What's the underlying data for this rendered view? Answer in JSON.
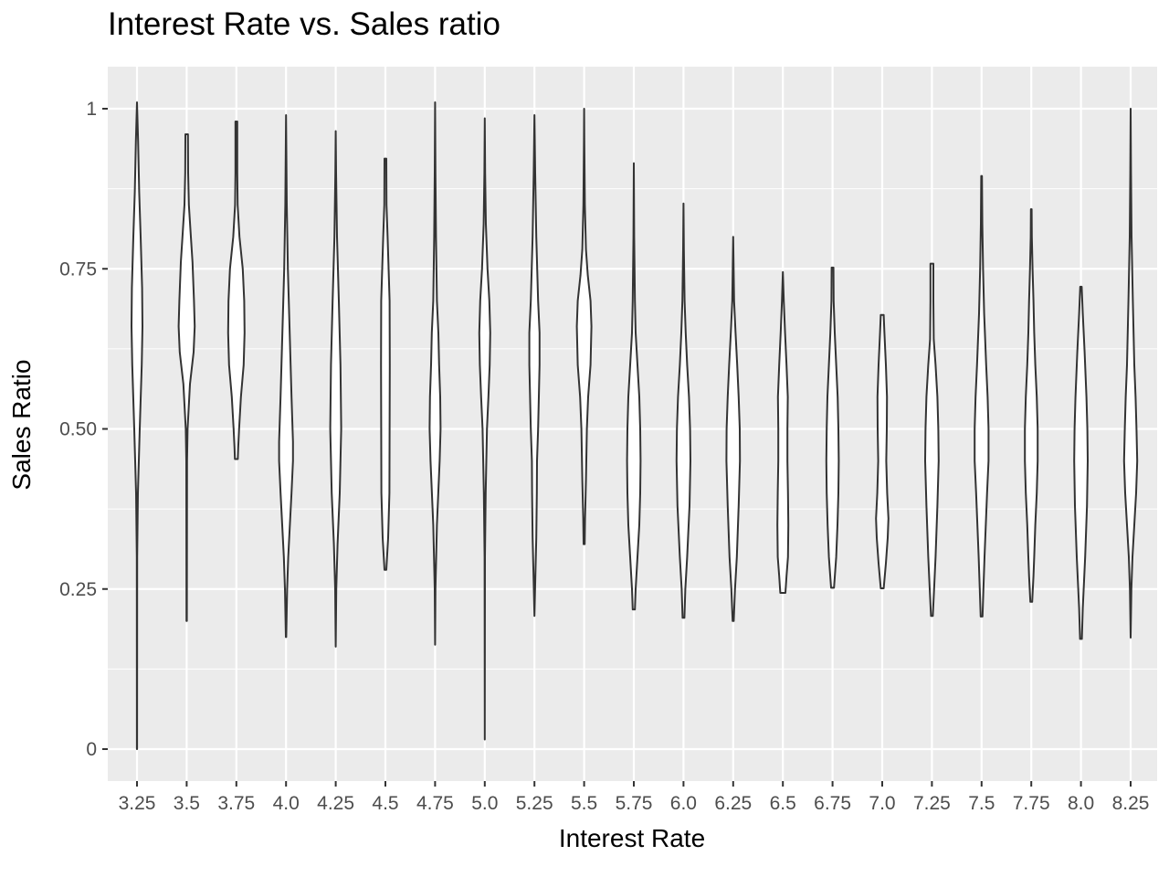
{
  "chart_data": {
    "type": "violin",
    "title": "Interest Rate vs. Sales ratio",
    "xlabel": "Interest Rate",
    "ylabel": "Sales Ratio",
    "categories": [
      "3.25",
      "3.5",
      "3.75",
      "4.0",
      "4.25",
      "4.5",
      "4.75",
      "5.0",
      "5.25",
      "5.5",
      "5.75",
      "6.0",
      "6.25",
      "6.5",
      "6.75",
      "7.0",
      "7.25",
      "7.5",
      "7.75",
      "8.0",
      "8.25"
    ],
    "ylim": [
      -0.05,
      1.065
    ],
    "yticks": [
      0,
      0.25,
      0.5,
      0.75,
      1
    ],
    "ytick_labels": [
      "0",
      "0.25",
      "0.50",
      "0.75",
      "1"
    ],
    "grid": true,
    "violins": [
      {
        "category": "3.25",
        "min": 0.0,
        "max": 1.01,
        "profile": [
          [
            0.0,
            0.005
          ],
          [
            0.3,
            0.01
          ],
          [
            0.4,
            0.05
          ],
          [
            0.5,
            0.15
          ],
          [
            0.6,
            0.26
          ],
          [
            0.66,
            0.3
          ],
          [
            0.72,
            0.28
          ],
          [
            0.8,
            0.2
          ],
          [
            0.87,
            0.12
          ],
          [
            0.95,
            0.06
          ],
          [
            1.01,
            0.0
          ]
        ]
      },
      {
        "category": "3.5",
        "min": 0.2,
        "max": 0.96,
        "profile": [
          [
            0.2,
            0.01
          ],
          [
            0.45,
            0.02
          ],
          [
            0.5,
            0.05
          ],
          [
            0.57,
            0.18
          ],
          [
            0.62,
            0.38
          ],
          [
            0.66,
            0.44
          ],
          [
            0.7,
            0.4
          ],
          [
            0.76,
            0.32
          ],
          [
            0.8,
            0.23
          ],
          [
            0.85,
            0.12
          ],
          [
            0.9,
            0.08
          ],
          [
            0.96,
            0.07
          ]
        ]
      },
      {
        "category": "3.75",
        "min": 0.453,
        "max": 0.98,
        "profile": [
          [
            0.453,
            0.08
          ],
          [
            0.47,
            0.1
          ],
          [
            0.5,
            0.15
          ],
          [
            0.55,
            0.25
          ],
          [
            0.6,
            0.4
          ],
          [
            0.65,
            0.45
          ],
          [
            0.7,
            0.43
          ],
          [
            0.75,
            0.35
          ],
          [
            0.8,
            0.17
          ],
          [
            0.85,
            0.07
          ],
          [
            0.9,
            0.05
          ],
          [
            0.95,
            0.05
          ],
          [
            0.98,
            0.05
          ]
        ]
      },
      {
        "category": "4.0",
        "min": 0.175,
        "max": 0.99,
        "profile": [
          [
            0.175,
            0.01
          ],
          [
            0.25,
            0.06
          ],
          [
            0.3,
            0.12
          ],
          [
            0.4,
            0.3
          ],
          [
            0.45,
            0.38
          ],
          [
            0.48,
            0.38
          ],
          [
            0.55,
            0.3
          ],
          [
            0.65,
            0.2
          ],
          [
            0.75,
            0.1
          ],
          [
            0.85,
            0.04
          ],
          [
            0.99,
            0.0
          ]
        ]
      },
      {
        "category": "4.25",
        "min": 0.16,
        "max": 0.965,
        "profile": [
          [
            0.16,
            0.0
          ],
          [
            0.25,
            0.03
          ],
          [
            0.32,
            0.1
          ],
          [
            0.4,
            0.22
          ],
          [
            0.5,
            0.3
          ],
          [
            0.6,
            0.26
          ],
          [
            0.7,
            0.17
          ],
          [
            0.8,
            0.07
          ],
          [
            0.9,
            0.02
          ],
          [
            0.965,
            0.0
          ]
        ]
      },
      {
        "category": "4.5",
        "min": 0.28,
        "max": 0.922,
        "profile": [
          [
            0.28,
            0.05
          ],
          [
            0.33,
            0.15
          ],
          [
            0.4,
            0.22
          ],
          [
            0.5,
            0.23
          ],
          [
            0.6,
            0.24
          ],
          [
            0.7,
            0.23
          ],
          [
            0.8,
            0.12
          ],
          [
            0.85,
            0.06
          ],
          [
            0.922,
            0.05
          ]
        ]
      },
      {
        "category": "4.75",
        "min": 0.163,
        "max": 1.01,
        "profile": [
          [
            0.163,
            0.0
          ],
          [
            0.25,
            0.02
          ],
          [
            0.35,
            0.1
          ],
          [
            0.45,
            0.25
          ],
          [
            0.5,
            0.3
          ],
          [
            0.55,
            0.28
          ],
          [
            0.6,
            0.22
          ],
          [
            0.65,
            0.18
          ],
          [
            0.7,
            0.1
          ],
          [
            0.8,
            0.05
          ],
          [
            0.9,
            0.02
          ],
          [
            1.01,
            0.0
          ]
        ]
      },
      {
        "category": "5.0",
        "min": 0.015,
        "max": 0.985,
        "profile": [
          [
            0.015,
            0.0
          ],
          [
            0.3,
            0.01
          ],
          [
            0.4,
            0.05
          ],
          [
            0.5,
            0.12
          ],
          [
            0.55,
            0.2
          ],
          [
            0.6,
            0.27
          ],
          [
            0.65,
            0.3
          ],
          [
            0.7,
            0.25
          ],
          [
            0.75,
            0.15
          ],
          [
            0.82,
            0.06
          ],
          [
            0.9,
            0.02
          ],
          [
            0.985,
            0.0
          ]
        ]
      },
      {
        "category": "5.25",
        "min": 0.208,
        "max": 0.99,
        "profile": [
          [
            0.208,
            0.0
          ],
          [
            0.27,
            0.05
          ],
          [
            0.33,
            0.1
          ],
          [
            0.4,
            0.13
          ],
          [
            0.45,
            0.14
          ],
          [
            0.5,
            0.2
          ],
          [
            0.6,
            0.28
          ],
          [
            0.65,
            0.28
          ],
          [
            0.7,
            0.2
          ],
          [
            0.8,
            0.1
          ],
          [
            0.9,
            0.04
          ],
          [
            0.99,
            0.0
          ]
        ]
      },
      {
        "category": "5.5",
        "min": 0.32,
        "max": 1.0,
        "profile": [
          [
            0.32,
            0.03
          ],
          [
            0.36,
            0.05
          ],
          [
            0.42,
            0.1
          ],
          [
            0.5,
            0.15
          ],
          [
            0.55,
            0.22
          ],
          [
            0.6,
            0.35
          ],
          [
            0.66,
            0.4
          ],
          [
            0.7,
            0.35
          ],
          [
            0.74,
            0.2
          ],
          [
            0.78,
            0.1
          ],
          [
            0.85,
            0.04
          ],
          [
            0.95,
            0.01
          ],
          [
            1.0,
            0.0
          ]
        ]
      },
      {
        "category": "5.75",
        "min": 0.218,
        "max": 0.915,
        "profile": [
          [
            0.218,
            0.06
          ],
          [
            0.25,
            0.1
          ],
          [
            0.3,
            0.2
          ],
          [
            0.35,
            0.3
          ],
          [
            0.4,
            0.35
          ],
          [
            0.45,
            0.37
          ],
          [
            0.5,
            0.35
          ],
          [
            0.55,
            0.3
          ],
          [
            0.6,
            0.2
          ],
          [
            0.65,
            0.1
          ],
          [
            0.7,
            0.06
          ],
          [
            0.8,
            0.02
          ],
          [
            0.915,
            0.0
          ]
        ]
      },
      {
        "category": "6.0",
        "min": 0.205,
        "max": 0.852,
        "profile": [
          [
            0.205,
            0.05
          ],
          [
            0.25,
            0.1
          ],
          [
            0.3,
            0.2
          ],
          [
            0.38,
            0.33
          ],
          [
            0.45,
            0.38
          ],
          [
            0.5,
            0.36
          ],
          [
            0.55,
            0.3
          ],
          [
            0.6,
            0.2
          ],
          [
            0.65,
            0.12
          ],
          [
            0.7,
            0.06
          ],
          [
            0.78,
            0.02
          ],
          [
            0.852,
            0.0
          ]
        ]
      },
      {
        "category": "6.25",
        "min": 0.2,
        "max": 0.803,
        "profile": [
          [
            0.2,
            0.03
          ],
          [
            0.25,
            0.1
          ],
          [
            0.3,
            0.2
          ],
          [
            0.38,
            0.3
          ],
          [
            0.45,
            0.37
          ],
          [
            0.5,
            0.36
          ],
          [
            0.55,
            0.3
          ],
          [
            0.6,
            0.22
          ],
          [
            0.65,
            0.13
          ],
          [
            0.7,
            0.05
          ],
          [
            0.8,
            0.0
          ]
        ]
      },
      {
        "category": "6.5",
        "min": 0.244,
        "max": 0.745,
        "profile": [
          [
            0.244,
            0.14
          ],
          [
            0.27,
            0.2
          ],
          [
            0.3,
            0.28
          ],
          [
            0.35,
            0.3
          ],
          [
            0.4,
            0.28
          ],
          [
            0.45,
            0.25
          ],
          [
            0.5,
            0.25
          ],
          [
            0.55,
            0.27
          ],
          [
            0.6,
            0.2
          ],
          [
            0.65,
            0.12
          ],
          [
            0.7,
            0.05
          ],
          [
            0.745,
            0.0
          ]
        ]
      },
      {
        "category": "6.75",
        "min": 0.252,
        "max": 0.752,
        "profile": [
          [
            0.252,
            0.08
          ],
          [
            0.3,
            0.2
          ],
          [
            0.35,
            0.27
          ],
          [
            0.4,
            0.32
          ],
          [
            0.45,
            0.34
          ],
          [
            0.5,
            0.32
          ],
          [
            0.55,
            0.28
          ],
          [
            0.6,
            0.2
          ],
          [
            0.65,
            0.12
          ],
          [
            0.7,
            0.06
          ],
          [
            0.752,
            0.05
          ]
        ]
      },
      {
        "category": "7.0",
        "min": 0.251,
        "max": 0.678,
        "profile": [
          [
            0.251,
            0.08
          ],
          [
            0.29,
            0.2
          ],
          [
            0.33,
            0.3
          ],
          [
            0.36,
            0.34
          ],
          [
            0.4,
            0.27
          ],
          [
            0.45,
            0.22
          ],
          [
            0.5,
            0.25
          ],
          [
            0.55,
            0.26
          ],
          [
            0.6,
            0.2
          ],
          [
            0.65,
            0.12
          ],
          [
            0.678,
            0.08
          ]
        ]
      },
      {
        "category": "7.25",
        "min": 0.208,
        "max": 0.758,
        "profile": [
          [
            0.208,
            0.05
          ],
          [
            0.25,
            0.12
          ],
          [
            0.3,
            0.2
          ],
          [
            0.38,
            0.3
          ],
          [
            0.45,
            0.37
          ],
          [
            0.5,
            0.35
          ],
          [
            0.55,
            0.3
          ],
          [
            0.6,
            0.2
          ],
          [
            0.64,
            0.1
          ],
          [
            0.7,
            0.08
          ],
          [
            0.758,
            0.08
          ]
        ]
      },
      {
        "category": "7.5",
        "min": 0.207,
        "max": 0.895,
        "profile": [
          [
            0.207,
            0.05
          ],
          [
            0.25,
            0.1
          ],
          [
            0.3,
            0.16
          ],
          [
            0.4,
            0.3
          ],
          [
            0.45,
            0.38
          ],
          [
            0.5,
            0.38
          ],
          [
            0.55,
            0.33
          ],
          [
            0.6,
            0.25
          ],
          [
            0.68,
            0.14
          ],
          [
            0.75,
            0.08
          ],
          [
            0.82,
            0.04
          ],
          [
            0.895,
            0.02
          ]
        ]
      },
      {
        "category": "7.75",
        "min": 0.23,
        "max": 0.843,
        "profile": [
          [
            0.23,
            0.05
          ],
          [
            0.27,
            0.12
          ],
          [
            0.3,
            0.16
          ],
          [
            0.35,
            0.22
          ],
          [
            0.4,
            0.3
          ],
          [
            0.45,
            0.35
          ],
          [
            0.5,
            0.35
          ],
          [
            0.55,
            0.3
          ],
          [
            0.6,
            0.22
          ],
          [
            0.65,
            0.16
          ],
          [
            0.7,
            0.12
          ],
          [
            0.75,
            0.07
          ],
          [
            0.8,
            0.03
          ],
          [
            0.843,
            0.02
          ]
        ]
      },
      {
        "category": "8.0",
        "min": 0.172,
        "max": 0.722,
        "profile": [
          [
            0.172,
            0.05
          ],
          [
            0.22,
            0.1
          ],
          [
            0.3,
            0.23
          ],
          [
            0.38,
            0.33
          ],
          [
            0.45,
            0.37
          ],
          [
            0.5,
            0.35
          ],
          [
            0.55,
            0.3
          ],
          [
            0.62,
            0.2
          ],
          [
            0.68,
            0.1
          ],
          [
            0.722,
            0.04
          ]
        ]
      },
      {
        "category": "8.25",
        "min": 0.174,
        "max": 1.0,
        "profile": [
          [
            0.174,
            0.0
          ],
          [
            0.25,
            0.04
          ],
          [
            0.3,
            0.1
          ],
          [
            0.35,
            0.2
          ],
          [
            0.4,
            0.3
          ],
          [
            0.45,
            0.36
          ],
          [
            0.5,
            0.32
          ],
          [
            0.55,
            0.27
          ],
          [
            0.6,
            0.2
          ],
          [
            0.7,
            0.12
          ],
          [
            0.8,
            0.05
          ],
          [
            0.9,
            0.02
          ],
          [
            1.0,
            0.0
          ]
        ]
      }
    ]
  }
}
